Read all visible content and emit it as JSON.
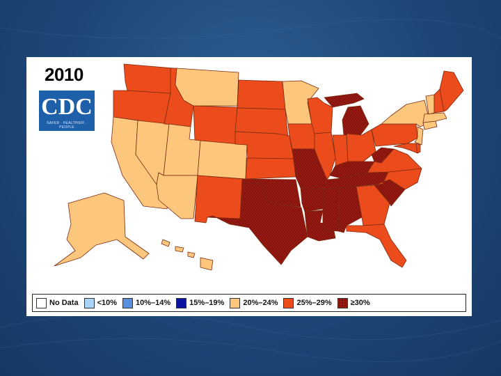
{
  "slide": {
    "background_color": "#1d4676"
  },
  "map": {
    "title": "2010",
    "logo": {
      "text": "CDC",
      "tagline": "SAFER · HEALTHIER · PEOPLE",
      "color": "#1d5fa8"
    },
    "legend": [
      {
        "label": "No Data",
        "color": "#ffffff"
      },
      {
        "label": "<10%",
        "color": "#a9d4f5"
      },
      {
        "label": "10%–14%",
        "color": "#5a8fe0"
      },
      {
        "label": "15%–19%",
        "color": "#0b14a0"
      },
      {
        "label": "20%–24%",
        "color": "#fcc67c"
      },
      {
        "label": "25%–29%",
        "color": "#ec4c1c"
      },
      {
        "label": "≥30%",
        "color": "#9a1a12"
      }
    ],
    "states": {
      "WA": "25%–29%",
      "OR": "25%–29%",
      "CA": "20%–24%",
      "NV": "20%–24%",
      "ID": "25%–29%",
      "MT": "20%–24%",
      "WY": "25%–29%",
      "UT": "20%–24%",
      "AZ": "20%–24%",
      "CO": "20%–24%",
      "NM": "25%–29%",
      "ND": "25%–29%",
      "SD": "25%–29%",
      "NE": "25%–29%",
      "KS": "25%–29%",
      "OK": "≥30%",
      "TX": "≥30%",
      "MN": "20%–24%",
      "IA": "25%–29%",
      "MO": "≥30%",
      "AR": "≥30%",
      "LA": "≥30%",
      "WI": "25%–29%",
      "IL": "25%–29%",
      "MI": "≥30%",
      "IN": "25%–29%",
      "OH": "25%–29%",
      "KY": "≥30%",
      "TN": "≥30%",
      "MS": "≥30%",
      "AL": "≥30%",
      "GA": "25%–29%",
      "FL": "25%–29%",
      "SC": "≥30%",
      "NC": "25%–29%",
      "VA": "25%–29%",
      "WV": "≥30%",
      "PA": "25%–29%",
      "NY": "20%–24%",
      "VT": "20%–24%",
      "NH": "25%–29%",
      "ME": "25%–29%",
      "MA": "20%–24%",
      "CT": "20%–24%",
      "NJ": "20%–24%",
      "MD": "25%–29%",
      "DE": "25%–29%",
      "AK": "20%–24%",
      "HI": "20%–24%"
    }
  }
}
